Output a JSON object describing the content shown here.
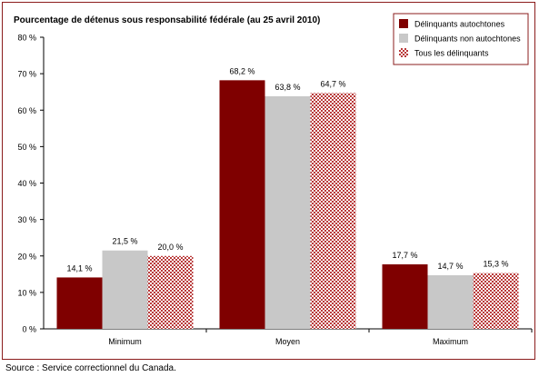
{
  "chart_data": {
    "type": "bar",
    "title": "Pourcentage de détenus sous responsabilité fédérale (au 25 avril 2010)",
    "categories": [
      "Minimum",
      "Moyen",
      "Maximum"
    ],
    "series": [
      {
        "name": "Délinquants autochtones",
        "values": [
          14.1,
          68.2,
          17.7
        ],
        "labels": [
          "14,1 %",
          "68,2 %",
          "17,7 %"
        ]
      },
      {
        "name": "Délinquants non autochtones",
        "values": [
          21.5,
          63.8,
          14.7
        ],
        "labels": [
          "21,5 %",
          "63,8 %",
          "14,7 %"
        ]
      },
      {
        "name": "Tous les délinquants",
        "values": [
          20.0,
          64.7,
          15.3
        ],
        "labels": [
          "20,0 %",
          "64,7 %",
          "15,3 %"
        ]
      }
    ],
    "ylim": [
      0,
      80
    ],
    "yticks": [
      0,
      10,
      20,
      30,
      40,
      50,
      60,
      70,
      80
    ],
    "ytick_labels": [
      "0 %",
      "10 %",
      "20 %",
      "30 %",
      "40 %",
      "50 %",
      "60 %",
      "70 %",
      "80 %"
    ],
    "grid": false,
    "legend_position": "top-right",
    "colors": {
      "autochtones": "#7f0000",
      "non_autochtones": "#c8c8c8",
      "tous_fill": "#ffffff",
      "tous_pattern": "#b93a3a",
      "frame": "#8b1c1c"
    }
  },
  "source": "Source : Service correctionnel du Canada."
}
